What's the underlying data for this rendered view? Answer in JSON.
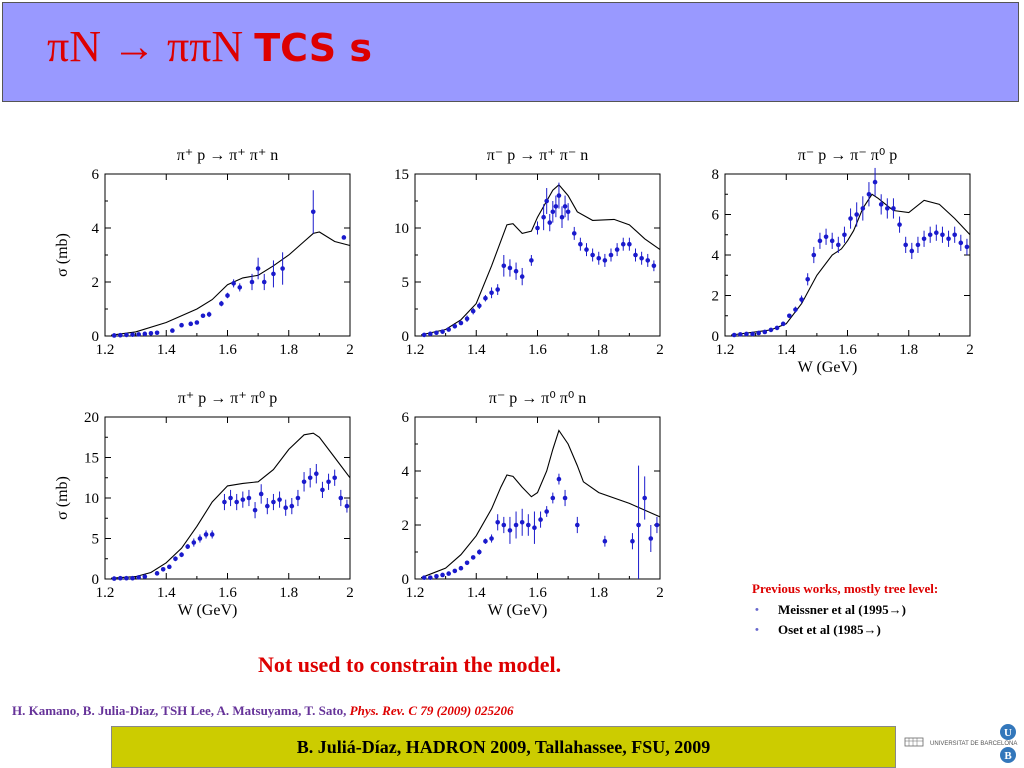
{
  "header": {
    "title": "πN → ππN",
    "title_tcs": "TCS s"
  },
  "chart_data": [
    {
      "type": "scatter",
      "title": "π⁺ p → π⁺ π⁺ n",
      "xlabel": "",
      "ylabel": "σ (mb)",
      "xlim": [
        1.2,
        2.0
      ],
      "ylim": [
        0,
        6
      ],
      "xticks": [
        "1.2",
        "1.4",
        "1.6",
        "1.8",
        "2"
      ],
      "yticks": [
        "0",
        "2",
        "4",
        "6"
      ],
      "series": [
        {
          "kind": "curve",
          "x": [
            1.22,
            1.3,
            1.4,
            1.5,
            1.55,
            1.6,
            1.65,
            1.7,
            1.75,
            1.8,
            1.85,
            1.88,
            1.9,
            1.95,
            2.0
          ],
          "y": [
            0.03,
            0.15,
            0.5,
            1.0,
            1.35,
            1.9,
            2.15,
            2.25,
            2.6,
            3.0,
            3.5,
            3.8,
            3.85,
            3.5,
            3.35
          ]
        },
        {
          "kind": "points",
          "x": [
            1.23,
            1.25,
            1.27,
            1.29,
            1.31,
            1.33,
            1.35,
            1.37,
            1.42,
            1.45,
            1.48,
            1.5,
            1.52,
            1.54,
            1.58,
            1.6,
            1.62,
            1.64,
            1.68,
            1.7,
            1.72,
            1.75,
            1.78,
            1.88,
            1.98
          ],
          "y": [
            0.02,
            0.03,
            0.04,
            0.05,
            0.06,
            0.08,
            0.1,
            0.12,
            0.2,
            0.4,
            0.45,
            0.5,
            0.75,
            0.8,
            1.2,
            1.5,
            1.95,
            1.8,
            2.0,
            2.5,
            2.0,
            2.3,
            2.5,
            4.6,
            3.65
          ],
          "err": [
            0,
            0,
            0,
            0,
            0,
            0,
            0,
            0,
            0,
            0,
            0,
            0,
            0,
            0.1,
            0.1,
            0.1,
            0.15,
            0.15,
            0.3,
            0.4,
            0.3,
            0.5,
            0.6,
            0.8,
            0
          ]
        }
      ]
    },
    {
      "type": "scatter",
      "title": "π⁻ p → π⁺ π⁻ n",
      "xlabel": "",
      "ylabel": "",
      "xlim": [
        1.2,
        2.0
      ],
      "ylim": [
        0,
        15
      ],
      "xticks": [
        "1.2",
        "1.4",
        "1.6",
        "1.8",
        "2"
      ],
      "yticks": [
        "0",
        "5",
        "10",
        "15"
      ],
      "series": [
        {
          "kind": "curve",
          "x": [
            1.22,
            1.3,
            1.35,
            1.4,
            1.45,
            1.5,
            1.52,
            1.55,
            1.58,
            1.6,
            1.63,
            1.65,
            1.67,
            1.7,
            1.73,
            1.78,
            1.85,
            1.9,
            1.95,
            2.0
          ],
          "y": [
            0.1,
            0.6,
            1.5,
            3.0,
            6.5,
            10.3,
            10.4,
            9.5,
            9.7,
            11.0,
            12.5,
            13.5,
            14.0,
            13.0,
            11.5,
            10.7,
            10.8,
            10.3,
            9.0,
            8.0
          ]
        },
        {
          "kind": "points",
          "x": [
            1.23,
            1.25,
            1.27,
            1.29,
            1.31,
            1.33,
            1.35,
            1.37,
            1.39,
            1.41,
            1.43,
            1.45,
            1.47,
            1.49,
            1.51,
            1.53,
            1.55,
            1.58,
            1.6,
            1.62,
            1.63,
            1.64,
            1.65,
            1.66,
            1.67,
            1.68,
            1.69,
            1.7,
            1.72,
            1.74,
            1.76,
            1.78,
            1.8,
            1.82,
            1.84,
            1.86,
            1.88,
            1.9,
            1.92,
            1.94,
            1.96,
            1.98
          ],
          "y": [
            0.1,
            0.2,
            0.3,
            0.4,
            0.6,
            0.9,
            1.2,
            1.6,
            2.3,
            2.8,
            3.5,
            4.0,
            4.3,
            6.5,
            6.3,
            6.0,
            5.5,
            7.0,
            10.0,
            11.0,
            12.5,
            10.5,
            11.5,
            12.0,
            13.0,
            11.0,
            12.0,
            11.5,
            9.5,
            8.5,
            8.0,
            7.5,
            7.2,
            7.0,
            7.5,
            8.0,
            8.5,
            8.5,
            7.5,
            7.2,
            7.0,
            6.5
          ],
          "err": [
            0,
            0,
            0,
            0,
            0,
            0,
            0,
            0.3,
            0.3,
            0.3,
            0.3,
            0.5,
            0.5,
            1.0,
            0.8,
            0.8,
            0.8,
            0.5,
            0.6,
            1.2,
            1.2,
            0.8,
            1.0,
            1.0,
            1.2,
            1.0,
            1.0,
            0.8,
            0.6,
            0.6,
            0.6,
            0.6,
            0.6,
            0.6,
            0.6,
            0.6,
            0.6,
            0.6,
            0.6,
            0.6,
            0.6,
            0.5
          ]
        }
      ]
    },
    {
      "type": "scatter",
      "title": "π⁻ p → π⁻ π⁰ p",
      "xlabel": "W (GeV)",
      "ylabel": "",
      "xlim": [
        1.2,
        2.0
      ],
      "ylim": [
        0,
        8
      ],
      "xticks": [
        "1.2",
        "1.4",
        "1.6",
        "1.8",
        "2"
      ],
      "yticks": [
        "0",
        "2",
        "4",
        "6",
        "8"
      ],
      "series": [
        {
          "kind": "curve",
          "x": [
            1.22,
            1.3,
            1.35,
            1.4,
            1.45,
            1.5,
            1.55,
            1.58,
            1.6,
            1.62,
            1.65,
            1.68,
            1.7,
            1.75,
            1.8,
            1.85,
            1.9,
            1.95,
            2.0
          ],
          "y": [
            0.05,
            0.2,
            0.3,
            0.6,
            1.6,
            3.0,
            4.0,
            4.3,
            4.7,
            5.2,
            6.3,
            7.0,
            6.8,
            6.2,
            6.1,
            6.7,
            6.5,
            5.8,
            5.0
          ]
        },
        {
          "kind": "points",
          "x": [
            1.23,
            1.25,
            1.27,
            1.29,
            1.31,
            1.33,
            1.35,
            1.37,
            1.39,
            1.41,
            1.43,
            1.45,
            1.47,
            1.49,
            1.51,
            1.53,
            1.55,
            1.57,
            1.59,
            1.61,
            1.63,
            1.65,
            1.67,
            1.69,
            1.71,
            1.73,
            1.75,
            1.77,
            1.79,
            1.81,
            1.83,
            1.85,
            1.87,
            1.89,
            1.91,
            1.93,
            1.95,
            1.97,
            1.99
          ],
          "y": [
            0.05,
            0.08,
            0.1,
            0.1,
            0.15,
            0.2,
            0.3,
            0.4,
            0.6,
            1.0,
            1.3,
            1.8,
            2.8,
            4.0,
            4.7,
            4.9,
            4.7,
            4.5,
            5.0,
            5.8,
            6.0,
            6.3,
            7.0,
            7.6,
            6.5,
            6.3,
            6.3,
            5.5,
            4.5,
            4.2,
            4.5,
            4.8,
            5.0,
            5.1,
            5.0,
            4.8,
            5.0,
            4.6,
            4.4
          ],
          "err": [
            0,
            0,
            0,
            0,
            0,
            0,
            0,
            0,
            0.1,
            0.1,
            0.15,
            0.2,
            0.3,
            0.4,
            0.4,
            0.4,
            0.4,
            0.4,
            0.4,
            0.5,
            0.6,
            0.6,
            0.6,
            0.7,
            0.5,
            0.5,
            0.5,
            0.4,
            0.4,
            0.4,
            0.4,
            0.4,
            0.4,
            0.4,
            0.4,
            0.4,
            0.4,
            0.4,
            0.4
          ]
        }
      ]
    },
    {
      "type": "scatter",
      "title": "π⁺ p → π⁺ π⁰ p",
      "xlabel": "W (GeV)",
      "ylabel": "σ (mb)",
      "xlim": [
        1.2,
        2.0
      ],
      "ylim": [
        0,
        20
      ],
      "xticks": [
        "1.2",
        "1.4",
        "1.6",
        "1.8",
        "2"
      ],
      "yticks": [
        "0",
        "5",
        "10",
        "15",
        "20"
      ],
      "series": [
        {
          "kind": "curve",
          "x": [
            1.22,
            1.3,
            1.35,
            1.4,
            1.45,
            1.5,
            1.55,
            1.6,
            1.65,
            1.7,
            1.75,
            1.8,
            1.85,
            1.88,
            1.9,
            1.95,
            2.0
          ],
          "y": [
            0.1,
            0.3,
            0.8,
            2.0,
            3.8,
            6.5,
            9.5,
            11.5,
            11.8,
            12.0,
            13.5,
            16.0,
            17.8,
            18.0,
            17.5,
            15.0,
            12.5
          ]
        },
        {
          "kind": "points",
          "x": [
            1.23,
            1.25,
            1.27,
            1.29,
            1.31,
            1.33,
            1.37,
            1.39,
            1.41,
            1.43,
            1.45,
            1.47,
            1.49,
            1.51,
            1.53,
            1.55,
            1.59,
            1.61,
            1.63,
            1.65,
            1.67,
            1.69,
            1.71,
            1.73,
            1.75,
            1.77,
            1.79,
            1.81,
            1.83,
            1.85,
            1.87,
            1.89,
            1.91,
            1.93,
            1.95,
            1.97,
            1.99
          ],
          "y": [
            0.05,
            0.1,
            0.1,
            0.1,
            0.2,
            0.3,
            0.7,
            1.2,
            1.5,
            2.5,
            3.0,
            4.0,
            4.5,
            5.0,
            5.5,
            5.5,
            9.5,
            10.0,
            9.5,
            9.8,
            10.0,
            8.5,
            10.5,
            9.0,
            9.5,
            9.8,
            8.8,
            9.0,
            10.0,
            12.0,
            12.5,
            13.0,
            11.0,
            12.0,
            12.5,
            10.0,
            9.0
          ],
          "err": [
            0,
            0,
            0,
            0,
            0,
            0,
            0.1,
            0.2,
            0.2,
            0.3,
            0.3,
            0.3,
            0.5,
            0.5,
            0.5,
            0.5,
            1.0,
            1.0,
            1.0,
            1.0,
            1.0,
            1.0,
            1.2,
            1.0,
            1.0,
            1.0,
            1.0,
            1.0,
            1.0,
            1.2,
            1.2,
            1.2,
            1.0,
            1.0,
            1.0,
            1.0,
            0.8
          ]
        }
      ]
    },
    {
      "type": "scatter",
      "title": "π⁻ p → π⁰ π⁰ n",
      "xlabel": "W (GeV)",
      "ylabel": "",
      "xlim": [
        1.2,
        2.0
      ],
      "ylim": [
        0,
        6
      ],
      "xticks": [
        "1.2",
        "1.4",
        "1.6",
        "1.8",
        "2"
      ],
      "yticks": [
        "0",
        "2",
        "4",
        "6"
      ],
      "series": [
        {
          "kind": "curve",
          "x": [
            1.22,
            1.3,
            1.35,
            1.4,
            1.45,
            1.48,
            1.5,
            1.52,
            1.55,
            1.58,
            1.6,
            1.63,
            1.65,
            1.67,
            1.7,
            1.73,
            1.75,
            1.8,
            1.9,
            2.0
          ],
          "y": [
            0.05,
            0.4,
            0.9,
            1.6,
            2.6,
            3.4,
            3.85,
            3.8,
            3.4,
            3.05,
            3.2,
            4.0,
            4.8,
            5.5,
            5.0,
            4.2,
            3.6,
            3.2,
            2.8,
            2.3
          ]
        },
        {
          "kind": "points",
          "x": [
            1.23,
            1.25,
            1.27,
            1.29,
            1.31,
            1.33,
            1.35,
            1.37,
            1.39,
            1.41,
            1.43,
            1.45,
            1.47,
            1.49,
            1.51,
            1.53,
            1.55,
            1.57,
            1.59,
            1.61,
            1.63,
            1.65,
            1.67,
            1.69,
            1.73,
            1.82,
            1.91,
            1.93,
            1.95,
            1.97,
            1.99
          ],
          "y": [
            0.05,
            0.05,
            0.1,
            0.15,
            0.2,
            0.3,
            0.4,
            0.6,
            0.8,
            1.0,
            1.4,
            1.5,
            2.1,
            2.0,
            1.8,
            2.0,
            2.1,
            2.0,
            1.9,
            2.2,
            2.5,
            3.0,
            3.7,
            3.0,
            2.0,
            1.4,
            1.4,
            2.0,
            3.0,
            1.5,
            2.0
          ],
          "err": [
            0,
            0,
            0,
            0,
            0,
            0,
            0,
            0,
            0,
            0.1,
            0.1,
            0.15,
            0.3,
            0.3,
            0.5,
            0.5,
            0.5,
            0.4,
            0.6,
            0.3,
            0.2,
            0.2,
            0.2,
            0.3,
            0.3,
            0.2,
            0.3,
            2.2,
            0.8,
            0.5,
            0.3
          ]
        }
      ]
    }
  ],
  "previous_works": {
    "header": "Previous works, mostly tree level:",
    "items": [
      "Meissner et al (1995→)",
      "Oset et al (1985→)"
    ]
  },
  "note": "Not used to constrain the model.",
  "reference": {
    "authors": "H. Kamano, B. Julia-Diaz, TSH Lee, A. Matsuyama, T. Sato,",
    "journal": "Phys. Rev. C 79 (2009) 025206"
  },
  "footer": {
    "text": "B. Juliá-Díaz, HADRON 2009, Tallahassee, FSU, 2009"
  },
  "logo": {
    "text": "UNIVERSITAT DE BARCELONA",
    "letter_u": "U",
    "letter_b": "B"
  },
  "colors": {
    "header_bg": "#9999ff",
    "title": "#dd0000",
    "points": "#1a1acc",
    "footer_bg": "#cccc00"
  }
}
